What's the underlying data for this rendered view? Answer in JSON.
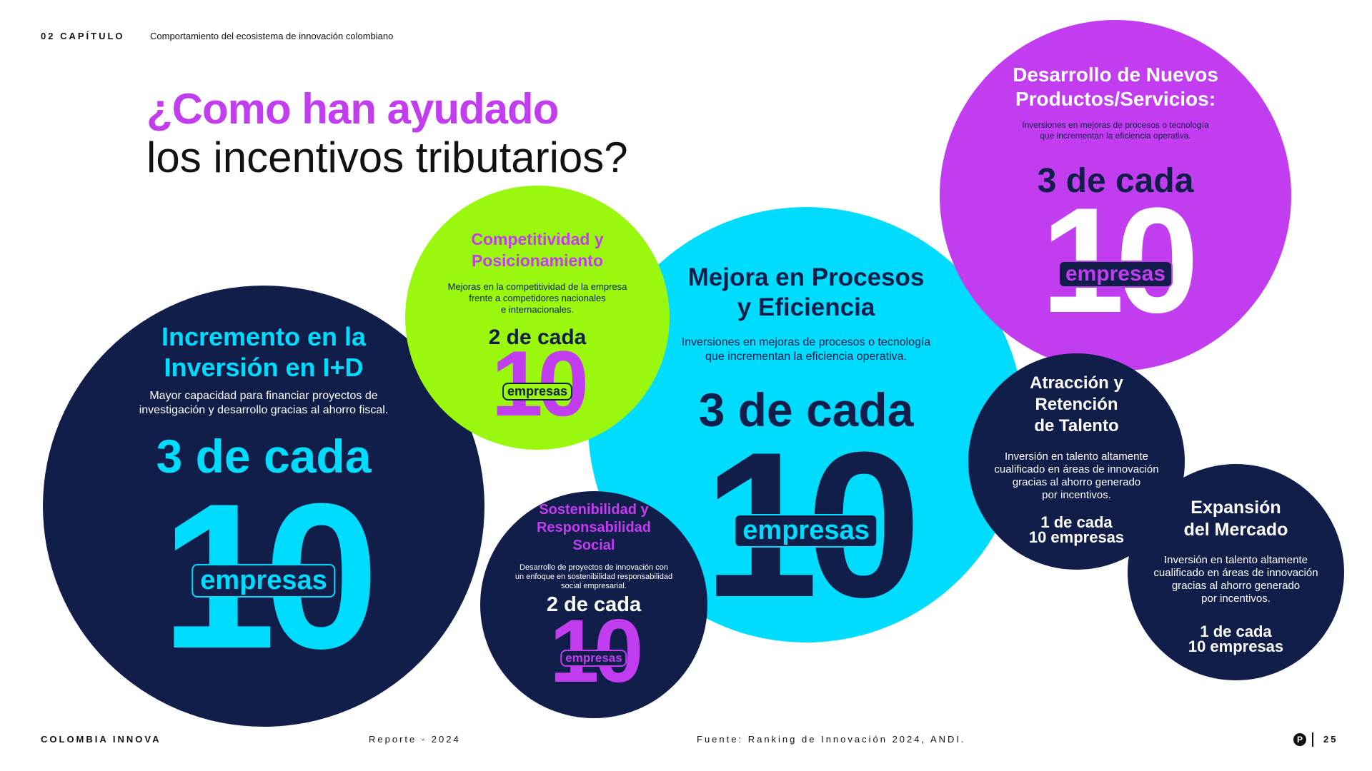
{
  "header": {
    "chapter": "02 CAPÍTULO",
    "subtitle": "Comportamiento del ecosistema de innovación colombiano"
  },
  "title": {
    "line1": "¿Como han ayudado",
    "line2": "los incentivos tributarios?"
  },
  "colors": {
    "navy": "#121e4a",
    "cyan": "#00dcfd",
    "purple": "#c23df0",
    "lime": "#99f80d"
  },
  "bubbles": {
    "inversion": {
      "heading1": "Incremento en la",
      "heading2": "Inversión en I+D",
      "desc1": "Mayor capacidad para financiar proyectos de",
      "desc2": "investigación y desarrollo gracias al ahorro fiscal.",
      "ratio": "3 de cada",
      "number": "10",
      "unit": "empresas"
    },
    "competitividad": {
      "heading1": "Competitividad y",
      "heading2": "Posicionamiento",
      "desc1": "Mejoras en la competitividad de la empresa",
      "desc2": "frente a competidores nacionales",
      "desc3": "e internacionales.",
      "ratio": "2 de cada",
      "number": "10",
      "unit": "empresas"
    },
    "mejora": {
      "heading1": "Mejora en Procesos",
      "heading2": "y Eficiencia",
      "desc1": "Inversiones en mejoras de procesos o tecnología",
      "desc2": "que incrementan la eficiencia operativa.",
      "ratio": "3 de cada",
      "number": "10",
      "unit": "empresas"
    },
    "sostenibilidad": {
      "heading1": "Sostenibilidad y",
      "heading2": "Responsabilidad",
      "heading3": "Social",
      "desc1": "Desarrollo de proyectos de innovación con",
      "desc2": "un enfoque en sostenibilidad responsabilidad",
      "desc3": "social empresarial.",
      "ratio": "2 de cada",
      "number": "10",
      "unit": "empresas"
    },
    "desarrollo": {
      "heading1": "Desarrollo de Nuevos",
      "heading2": "Productos/Servicios:",
      "desc1": "Inversiones en mejoras de procesos o tecnología",
      "desc2": "que incrementan la eficiencia operativa.",
      "ratio": "3 de cada",
      "number": "10",
      "unit": "empresas"
    },
    "talento": {
      "heading1": "Atracción y",
      "heading2": "Retención",
      "heading3": "de Talento",
      "desc1": "Inversión en talento altamente",
      "desc2": "cualificado en áreas de innovación",
      "desc3": "gracias al ahorro generado",
      "desc4": "por incentivos.",
      "ratio1": "1 de cada",
      "ratio2": "10 empresas"
    },
    "expansion": {
      "heading1": "Expansión",
      "heading2": "del Mercado",
      "desc1": "Inversión en talento altamente",
      "desc2": "cualificado en áreas de innovación",
      "desc3": "gracias al ahorro generado",
      "desc4": "por incentivos.",
      "ratio1": "1 de cada",
      "ratio2": "10 empresas"
    }
  },
  "footer": {
    "brand": "COLOMBIA INNOVA",
    "report": "Reporte - 2024",
    "source": "Fuente: Ranking de Innovación 2024, ANDI.",
    "logo_letter": "P",
    "page": "25"
  }
}
